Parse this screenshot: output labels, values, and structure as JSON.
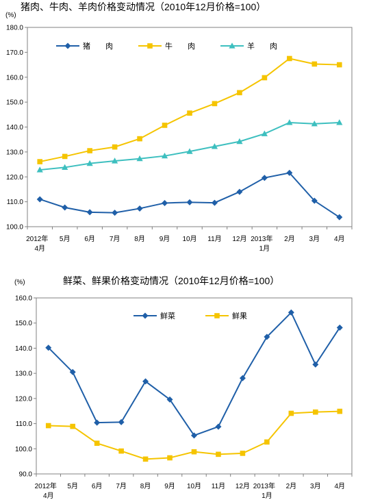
{
  "charts": [
    {
      "id": "chart1",
      "title": "猪肉、牛肉、羊肉价格变动情况（2010年12月价格=100）",
      "unit": "(%)",
      "chart_data": {
        "type": "line",
        "title": "猪肉、牛肉、羊肉价格变动情况（2010年12月价格=100）",
        "ylabel": "(%)",
        "xlabel": "",
        "ylim": [
          100.0,
          180.0
        ],
        "yticks": [
          "100.0",
          "110.0",
          "120.0",
          "130.0",
          "140.0",
          "150.0",
          "160.0",
          "170.0",
          "180.0"
        ],
        "categories": [
          [
            "2012年",
            "4月"
          ],
          [
            "5月"
          ],
          [
            "6月"
          ],
          [
            "7月"
          ],
          [
            "8月"
          ],
          [
            "9月"
          ],
          [
            "10月"
          ],
          [
            "11月"
          ],
          [
            "12月"
          ],
          [
            "2013年",
            "1月"
          ],
          [
            "2月"
          ],
          [
            "3月"
          ],
          [
            "4月"
          ]
        ],
        "legend_position": "top-left",
        "grid": false,
        "series": [
          {
            "name": "猪　　肉",
            "color": "#1f5fa8",
            "marker": "diamond",
            "values": [
              111.0,
              107.7,
              105.8,
              105.6,
              107.3,
              109.5,
              109.8,
              109.6,
              114.0,
              119.6,
              121.6,
              110.4,
              103.8
            ]
          },
          {
            "name": "牛　　肉",
            "color": "#f5c400",
            "marker": "square",
            "values": [
              126.1,
              128.2,
              130.5,
              132.0,
              135.3,
              140.7,
              145.6,
              149.4,
              153.8,
              159.8,
              167.5,
              165.3,
              165.0
            ]
          },
          {
            "name": "羊　　肉",
            "color": "#3dbfbf",
            "marker": "triangle",
            "values": [
              122.8,
              123.8,
              125.4,
              126.4,
              127.3,
              128.4,
              130.2,
              132.2,
              134.2,
              137.3,
              141.8,
              141.3,
              141.8
            ]
          }
        ]
      }
    },
    {
      "id": "chart2",
      "title": "鲜菜、鲜果价格变动情况（2010年12月价格=100）",
      "unit": "(%)",
      "chart_data": {
        "type": "line",
        "title": "鲜菜、鲜果价格变动情况（2010年12月价格=100）",
        "ylabel": "(%)",
        "xlabel": "",
        "ylim": [
          90.0,
          160.0
        ],
        "yticks": [
          "90.0",
          "100.0",
          "110.0",
          "120.0",
          "130.0",
          "140.0",
          "150.0",
          "160.0"
        ],
        "categories": [
          [
            "2012年",
            "4月"
          ],
          [
            "5月"
          ],
          [
            "6月"
          ],
          [
            "7月"
          ],
          [
            "8月"
          ],
          [
            "9月"
          ],
          [
            "10月"
          ],
          [
            "11月"
          ],
          [
            "12月"
          ],
          [
            "2013年",
            "1月"
          ],
          [
            "2月"
          ],
          [
            "3月"
          ],
          [
            "4月"
          ]
        ],
        "legend_position": "top-center",
        "grid": false,
        "series": [
          {
            "name": "鲜菜",
            "color": "#1f5fa8",
            "marker": "diamond",
            "values": [
              140.2,
              130.5,
              110.4,
              110.6,
              126.8,
              119.6,
              105.3,
              108.8,
              128.1,
              144.5,
              154.2,
              133.5,
              148.2
            ]
          },
          {
            "name": "鲜果",
            "color": "#f5c400",
            "marker": "square",
            "values": [
              109.2,
              108.9,
              102.2,
              99.1,
              95.9,
              96.4,
              98.8,
              97.8,
              98.2,
              102.7,
              114.1,
              114.6,
              114.9
            ]
          }
        ]
      }
    }
  ]
}
